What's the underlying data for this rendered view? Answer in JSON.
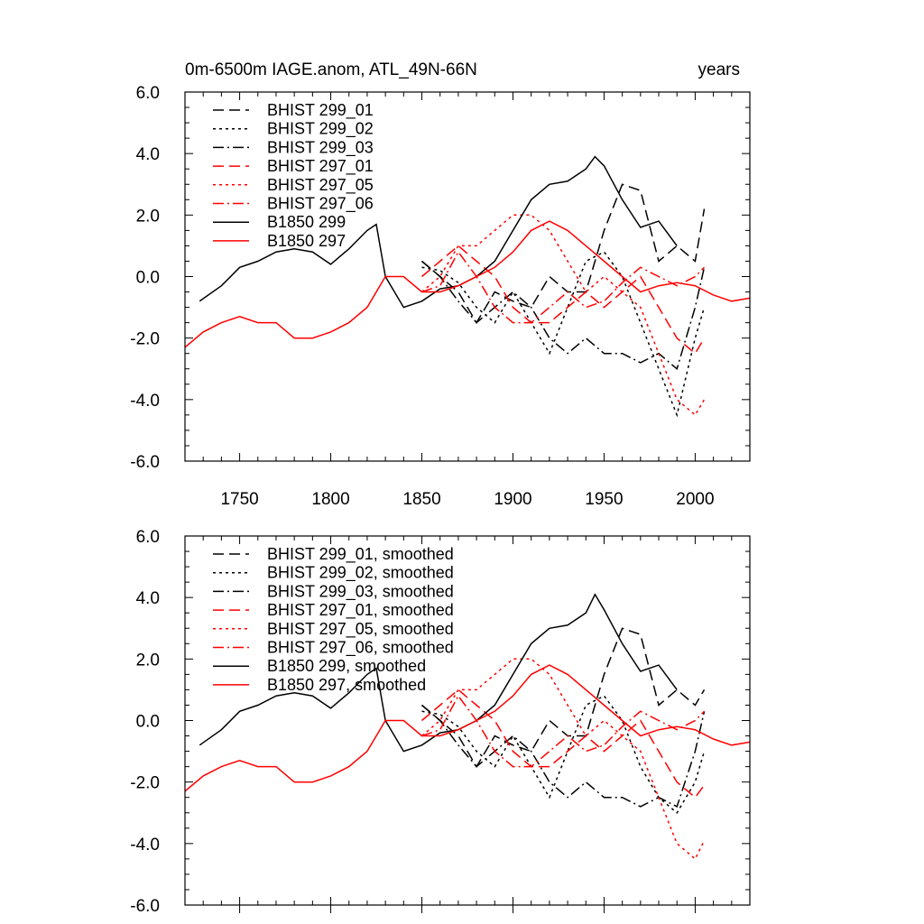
{
  "chart_data": [
    {
      "type": "line",
      "title_left": "0m-6500m IAGE.anom, ATL_49N-66N",
      "title_right": "years",
      "xlim": [
        1720,
        2030
      ],
      "ylim": [
        -6,
        6
      ],
      "xticks": [
        1750,
        1800,
        1850,
        1900,
        1950,
        2000
      ],
      "yticks": [
        -6,
        -4,
        -2,
        0,
        2,
        4,
        6
      ],
      "ytick_labels": [
        "-6.0",
        "-4.0",
        "-2.0",
        "0.0",
        "2.0",
        "4.0",
        "6.0"
      ],
      "legend": "top-left",
      "series": [
        {
          "name": "BHIST 299_01",
          "color": "#000000",
          "dash": "dash",
          "x": [
            1850,
            1860,
            1870,
            1880,
            1890,
            1900,
            1910,
            1920,
            1930,
            1940,
            1950,
            1960,
            1970,
            1980,
            1990,
            2000,
            2005
          ],
          "y": [
            0.5,
            0.0,
            -0.5,
            -1.5,
            -0.5,
            -0.8,
            -1.0,
            0.0,
            -0.5,
            -0.5,
            1.5,
            3.0,
            2.8,
            0.5,
            1.0,
            0.5,
            2.2
          ]
        },
        {
          "name": "BHIST 299_02",
          "color": "#000000",
          "dash": "dot",
          "x": [
            1850,
            1860,
            1870,
            1880,
            1890,
            1900,
            1910,
            1920,
            1930,
            1940,
            1950,
            1960,
            1970,
            1980,
            1990,
            2000,
            2005
          ],
          "y": [
            0.3,
            0.2,
            -0.2,
            -1.0,
            -1.5,
            -0.5,
            -1.5,
            -2.5,
            -1.0,
            0.5,
            0.8,
            0.0,
            -1.5,
            -3.0,
            -4.5,
            -2.0,
            -1.0
          ]
        },
        {
          "name": "BHIST 299_03",
          "color": "#000000",
          "dash": "dashdot",
          "x": [
            1850,
            1860,
            1870,
            1880,
            1890,
            1900,
            1910,
            1920,
            1930,
            1940,
            1950,
            1960,
            1970,
            1980,
            1990,
            2000,
            2005
          ],
          "y": [
            0.5,
            0.0,
            -0.8,
            -1.5,
            -1.0,
            -0.5,
            -1.0,
            -2.0,
            -2.5,
            -2.0,
            -2.5,
            -2.5,
            -2.8,
            -2.5,
            -3.0,
            -1.0,
            0.3
          ]
        },
        {
          "name": "BHIST 297_01",
          "color": "#ff0000",
          "dash": "dash",
          "x": [
            1850,
            1860,
            1870,
            1880,
            1890,
            1900,
            1910,
            1920,
            1930,
            1940,
            1950,
            1960,
            1970,
            1980,
            1990,
            2000,
            2005
          ],
          "y": [
            0.0,
            0.5,
            1.0,
            0.5,
            0.0,
            -1.0,
            -1.5,
            -1.5,
            -1.0,
            -0.5,
            -1.0,
            -0.5,
            0.0,
            -1.0,
            -2.0,
            -2.5,
            -2.0
          ]
        },
        {
          "name": "BHIST 297_05",
          "color": "#ff0000",
          "dash": "dot",
          "x": [
            1850,
            1860,
            1870,
            1880,
            1890,
            1900,
            1910,
            1920,
            1930,
            1940,
            1950,
            1960,
            1970,
            1980,
            1990,
            2000,
            2005
          ],
          "y": [
            -0.5,
            0.0,
            1.0,
            1.0,
            1.5,
            2.0,
            2.0,
            1.5,
            0.5,
            -0.5,
            0.0,
            -0.5,
            -1.0,
            -2.5,
            -4.0,
            -4.5,
            -4.0
          ]
        },
        {
          "name": "BHIST 297_06",
          "color": "#ff0000",
          "dash": "dashdot",
          "x": [
            1850,
            1860,
            1870,
            1880,
            1890,
            1900,
            1910,
            1920,
            1930,
            1940,
            1950,
            1960,
            1970,
            1980,
            1990,
            2000,
            2005
          ],
          "y": [
            -0.5,
            -0.3,
            0.8,
            0.0,
            -1.0,
            -1.5,
            -1.5,
            -1.0,
            -0.5,
            -1.0,
            -0.8,
            -0.2,
            0.3,
            0.0,
            -0.3,
            0.0,
            0.3
          ]
        },
        {
          "name": "B1850 299",
          "color": "#000000",
          "dash": "solid",
          "x": [
            1728,
            1740,
            1750,
            1760,
            1770,
            1780,
            1790,
            1800,
            1810,
            1820,
            1825,
            1830,
            1840,
            1850,
            1860,
            1870,
            1880,
            1890,
            1900,
            1910,
            1920,
            1930,
            1940,
            1945,
            1950,
            1960,
            1970,
            1980,
            1990
          ],
          "y": [
            -0.8,
            -0.3,
            0.3,
            0.5,
            0.8,
            0.9,
            0.8,
            0.4,
            0.9,
            1.5,
            1.7,
            0.0,
            -1.0,
            -0.8,
            -0.4,
            -0.3,
            0.0,
            0.5,
            1.5,
            2.5,
            3.0,
            3.1,
            3.5,
            3.9,
            3.6,
            2.5,
            1.6,
            1.8,
            1.0
          ]
        },
        {
          "name": "B1850 297",
          "color": "#ff0000",
          "dash": "solid",
          "x": [
            1720,
            1730,
            1740,
            1750,
            1760,
            1770,
            1780,
            1790,
            1800,
            1810,
            1820,
            1830,
            1840,
            1850,
            1860,
            1870,
            1880,
            1890,
            1900,
            1910,
            1920,
            1930,
            1940,
            1950,
            1960,
            1970,
            1980,
            1990,
            2000,
            2010,
            2020,
            2030
          ],
          "y": [
            -2.3,
            -1.8,
            -1.5,
            -1.3,
            -1.5,
            -1.5,
            -2.0,
            -2.0,
            -1.8,
            -1.5,
            -1.0,
            0.0,
            0.0,
            -0.5,
            -0.5,
            -0.3,
            0.0,
            0.3,
            0.8,
            1.5,
            1.8,
            1.5,
            1.0,
            0.5,
            0.0,
            -0.5,
            -0.3,
            -0.2,
            -0.3,
            -0.6,
            -0.8,
            -0.7
          ]
        }
      ]
    },
    {
      "type": "line",
      "xlim": [
        1720,
        2030
      ],
      "ylim": [
        -6,
        6
      ],
      "yticks": [
        -6,
        -4,
        -2,
        0,
        2,
        4,
        6
      ],
      "ytick_labels": [
        "-6.0",
        "-4.0",
        "-2.0",
        "0.0",
        "2.0",
        "4.0",
        "6.0"
      ],
      "legend": "top-left",
      "series": [
        {
          "name": "BHIST 299_01, smoothed",
          "color": "#000000",
          "dash": "dash",
          "x": [
            1850,
            1860,
            1870,
            1880,
            1890,
            1900,
            1910,
            1920,
            1930,
            1940,
            1950,
            1960,
            1970,
            1980,
            1990,
            2000,
            2005
          ],
          "y": [
            0.5,
            0.0,
            -0.5,
            -1.5,
            -0.5,
            -0.8,
            -1.0,
            0.0,
            -0.5,
            -0.5,
            1.5,
            3.0,
            2.8,
            0.5,
            1.0,
            0.5,
            1.0
          ]
        },
        {
          "name": "BHIST 299_02, smoothed",
          "color": "#000000",
          "dash": "dot",
          "x": [
            1850,
            1860,
            1870,
            1880,
            1890,
            1900,
            1910,
            1920,
            1930,
            1940,
            1950,
            1960,
            1970,
            1980,
            1990,
            2000,
            2005
          ],
          "y": [
            0.3,
            0.2,
            -0.2,
            -1.0,
            -1.5,
            -0.5,
            -1.5,
            -2.5,
            -1.0,
            0.5,
            0.8,
            0.0,
            -1.5,
            -2.5,
            -3.0,
            -2.0,
            -1.0
          ]
        },
        {
          "name": "BHIST 299_03, smoothed",
          "color": "#000000",
          "dash": "dashdot",
          "x": [
            1850,
            1860,
            1870,
            1880,
            1890,
            1900,
            1910,
            1920,
            1930,
            1940,
            1950,
            1960,
            1970,
            1980,
            1990,
            2000,
            2005
          ],
          "y": [
            0.5,
            0.0,
            -0.8,
            -1.5,
            -1.0,
            -0.5,
            -1.0,
            -2.0,
            -2.5,
            -2.0,
            -2.5,
            -2.5,
            -2.8,
            -2.5,
            -2.8,
            -1.0,
            0.3
          ]
        },
        {
          "name": "BHIST 297_01, smoothed",
          "color": "#ff0000",
          "dash": "dash",
          "x": [
            1850,
            1860,
            1870,
            1880,
            1890,
            1900,
            1910,
            1920,
            1930,
            1940,
            1950,
            1960,
            1970,
            1980,
            1990,
            2000,
            2005
          ],
          "y": [
            0.0,
            0.5,
            1.0,
            0.5,
            0.0,
            -1.0,
            -1.5,
            -1.5,
            -1.0,
            -0.5,
            -1.0,
            -0.5,
            0.0,
            -1.0,
            -2.0,
            -2.5,
            -2.1
          ]
        },
        {
          "name": "BHIST 297_05, smoothed",
          "color": "#ff0000",
          "dash": "dot",
          "x": [
            1850,
            1860,
            1870,
            1880,
            1890,
            1900,
            1910,
            1920,
            1930,
            1940,
            1950,
            1960,
            1970,
            1980,
            1990,
            2000,
            2005
          ],
          "y": [
            -0.5,
            0.0,
            1.0,
            1.0,
            1.5,
            2.0,
            2.0,
            1.5,
            0.5,
            -0.5,
            0.0,
            -0.5,
            -1.0,
            -2.5,
            -4.0,
            -4.5,
            -3.9
          ]
        },
        {
          "name": "BHIST 297_06, smoothed",
          "color": "#ff0000",
          "dash": "dashdot",
          "x": [
            1850,
            1860,
            1870,
            1880,
            1890,
            1900,
            1910,
            1920,
            1930,
            1940,
            1950,
            1960,
            1970,
            1980,
            1990,
            2000,
            2005
          ],
          "y": [
            -0.5,
            -0.3,
            0.8,
            0.0,
            -1.0,
            -1.5,
            -1.5,
            -1.0,
            -0.5,
            -1.0,
            -0.8,
            -0.2,
            0.3,
            0.0,
            -0.3,
            0.0,
            0.3
          ]
        },
        {
          "name": "B1850 299, smoothed",
          "color": "#000000",
          "dash": "solid",
          "x": [
            1728,
            1740,
            1750,
            1760,
            1770,
            1780,
            1790,
            1800,
            1810,
            1820,
            1825,
            1830,
            1840,
            1850,
            1860,
            1870,
            1880,
            1890,
            1900,
            1910,
            1920,
            1930,
            1940,
            1945,
            1950,
            1960,
            1970,
            1980,
            1990
          ],
          "y": [
            -0.8,
            -0.3,
            0.3,
            0.5,
            0.8,
            0.9,
            0.8,
            0.4,
            0.9,
            1.5,
            1.7,
            0.0,
            -1.0,
            -0.8,
            -0.4,
            -0.3,
            0.0,
            0.5,
            1.5,
            2.5,
            3.0,
            3.1,
            3.5,
            4.1,
            3.6,
            2.5,
            1.6,
            1.8,
            1.0
          ]
        },
        {
          "name": "B1850 297, smoothed",
          "color": "#ff0000",
          "dash": "solid",
          "x": [
            1720,
            1730,
            1740,
            1750,
            1760,
            1770,
            1780,
            1790,
            1800,
            1810,
            1820,
            1830,
            1840,
            1850,
            1860,
            1870,
            1880,
            1890,
            1900,
            1910,
            1920,
            1930,
            1940,
            1950,
            1960,
            1970,
            1980,
            1990,
            2000,
            2010,
            2020,
            2030
          ],
          "y": [
            -2.3,
            -1.8,
            -1.5,
            -1.3,
            -1.5,
            -1.5,
            -2.0,
            -2.0,
            -1.8,
            -1.5,
            -1.0,
            0.0,
            0.0,
            -0.5,
            -0.5,
            -0.3,
            0.0,
            0.3,
            0.8,
            1.5,
            1.8,
            1.5,
            1.0,
            0.5,
            0.0,
            -0.5,
            -0.3,
            -0.2,
            -0.3,
            -0.6,
            -0.8,
            -0.7
          ]
        }
      ]
    }
  ]
}
